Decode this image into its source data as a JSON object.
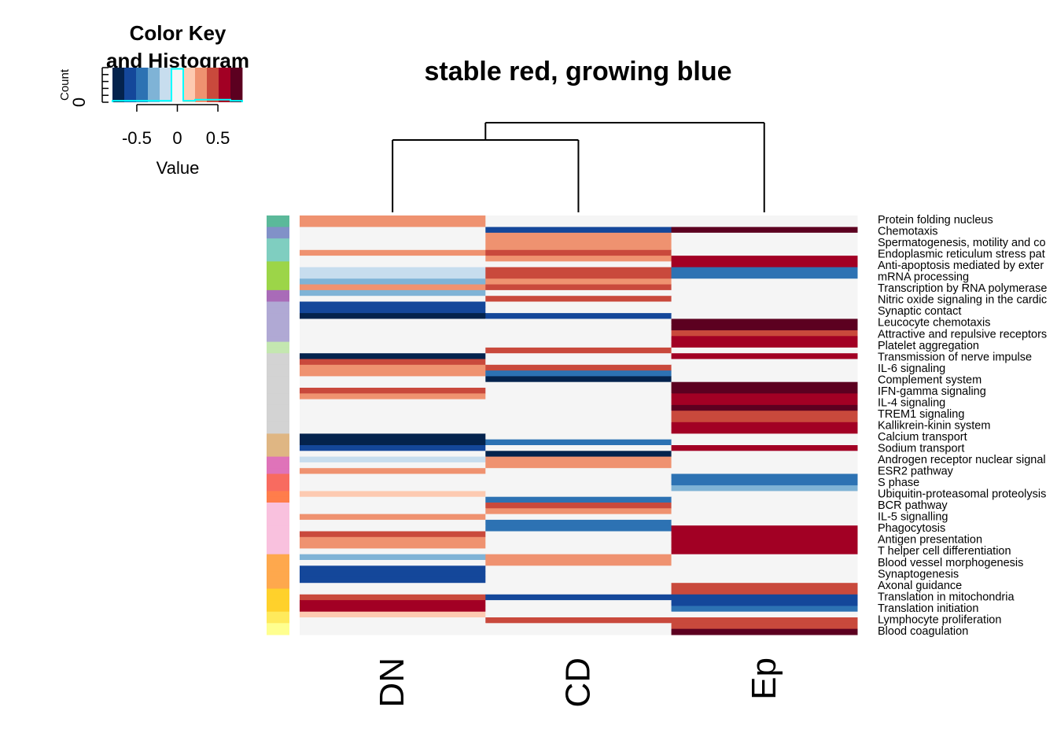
{
  "chart_data": {
    "type": "heatmap",
    "title": "stable red, growing blue",
    "columns": [
      "DN",
      "CD",
      "Ep"
    ],
    "row_labels": [
      "Protein folding nucleus",
      "Chemotaxis",
      "Spermatogenesis, motility and co",
      "Endoplasmic reticulum stress pat",
      "Anti-apoptosis mediated by exter",
      "mRNA processing",
      "Transcription by RNA polymerase",
      "Nitric oxide signaling in the cardic",
      "Synaptic contact",
      "Leucocyte chemotaxis",
      "Attractive and repulsive receptors",
      "Platelet aggregation",
      "Transmission of nerve impulse",
      "IL-6 signaling",
      "Complement system",
      "IFN-gamma signaling",
      "IL-4 signaling",
      "TREM1 signaling",
      "Kallikrein-kinin system",
      "Calcium transport",
      "Sodium transport",
      "Androgen receptor nuclear signal",
      "ESR2 pathway",
      "S phase",
      "Ubiquitin-proteasomal proteolysis",
      "BCR pathway",
      "IL-5 signalling",
      "Phagocytosis",
      "Antigen presentation",
      "T helper cell differentiation",
      "Blood vessel morphogenesis",
      "Synaptogenesis",
      "Axonal guidance",
      "Translation in mitochondria",
      "Translation initiation",
      "Lymphocyte proliferation",
      "Blood coagulation"
    ],
    "n_rows": 73,
    "values": [
      [
        0.35,
        0,
        0
      ],
      [
        0.35,
        0,
        0
      ],
      [
        0,
        -0.6,
        0.7
      ],
      [
        0,
        0.35,
        0
      ],
      [
        0,
        0.35,
        0
      ],
      [
        0,
        0.35,
        0
      ],
      [
        0.35,
        0.45,
        0
      ],
      [
        0,
        0.35,
        0.6
      ],
      [
        0,
        0,
        0.6
      ],
      [
        -0.2,
        0.45,
        -0.5
      ],
      [
        -0.2,
        0.45,
        -0.5
      ],
      [
        -0.3,
        0.35,
        0
      ],
      [
        0.35,
        0.45,
        0
      ],
      [
        -0.3,
        0,
        0
      ],
      [
        0,
        0.45,
        0
      ],
      [
        -0.6,
        0,
        0
      ],
      [
        -0.6,
        0,
        0
      ],
      [
        -0.8,
        -0.6,
        0
      ],
      [
        0,
        0,
        0.7
      ],
      [
        0,
        0,
        0.7
      ],
      [
        0,
        0,
        0.45
      ],
      [
        0,
        0,
        0.6
      ],
      [
        0,
        0,
        0.6
      ],
      [
        0,
        0.45,
        0
      ],
      [
        -0.8,
        0,
        0.6
      ],
      [
        0.45,
        0,
        0
      ],
      [
        0.35,
        0.45,
        0
      ],
      [
        0.35,
        -0.5,
        0
      ],
      [
        0,
        -0.8,
        0
      ],
      [
        0,
        0,
        0.7
      ],
      [
        0.45,
        0,
        0.7
      ],
      [
        0.35,
        0,
        0.6
      ],
      [
        0,
        0,
        0.6
      ],
      [
        0,
        0,
        0.7
      ],
      [
        0,
        0,
        0.45
      ],
      [
        0,
        0,
        0.45
      ],
      [
        0,
        0,
        0.6
      ],
      [
        0,
        0,
        0.6
      ],
      [
        -0.8,
        0,
        0
      ],
      [
        -0.8,
        -0.5,
        0
      ],
      [
        -0.6,
        0,
        0.6
      ],
      [
        0,
        -0.8,
        0
      ],
      [
        -0.2,
        0.35,
        0
      ],
      [
        0,
        0.35,
        0
      ],
      [
        0.35,
        0,
        0
      ],
      [
        0,
        0,
        -0.5
      ],
      [
        0,
        0,
        -0.5
      ],
      [
        0,
        0,
        -0.3
      ],
      [
        0.15,
        0,
        0
      ],
      [
        0,
        -0.5,
        0
      ],
      [
        0,
        0.45,
        0
      ],
      [
        0,
        0.35,
        0
      ],
      [
        0.35,
        0,
        0
      ],
      [
        0,
        -0.5,
        0
      ],
      [
        0,
        -0.5,
        0.6
      ],
      [
        0.45,
        0,
        0.6
      ],
      [
        0.35,
        0,
        0.6
      ],
      [
        0.35,
        0,
        0.6
      ],
      [
        0,
        0,
        0.6
      ],
      [
        -0.3,
        0.35,
        0
      ],
      [
        0,
        0.35,
        0
      ],
      [
        -0.6,
        0,
        0
      ],
      [
        -0.6,
        0,
        0
      ],
      [
        -0.6,
        0,
        0
      ],
      [
        0,
        0,
        0.45
      ],
      [
        0,
        0,
        0.45
      ],
      [
        0.45,
        -0.6,
        -0.6
      ],
      [
        0.6,
        0,
        -0.6
      ],
      [
        0.6,
        0,
        -0.5
      ],
      [
        0.15,
        0,
        0
      ],
      [
        0,
        0.45,
        0.45
      ],
      [
        0,
        0,
        0.45
      ],
      [
        0,
        0,
        0.7
      ]
    ],
    "row_side_colors": [
      "#5bb99a",
      "#5bb99a",
      "#8191c8",
      "#8191c8",
      "#7fcec0",
      "#7fcec0",
      "#7fcec0",
      "#7fcec0",
      "#9cd548",
      "#9cd548",
      "#9cd548",
      "#9cd548",
      "#9cd548",
      "#a96bb8",
      "#a96bb8",
      "#b0a9d4",
      "#b0a9d4",
      "#b0a9d4",
      "#b0a9d4",
      "#b0a9d4",
      "#b0a9d4",
      "#b0a9d4",
      "#c4e7b0",
      "#c4e7b0",
      "#d3d3d3",
      "#d3d3d3",
      "#d3d3d3",
      "#d3d3d3",
      "#d3d3d3",
      "#d3d3d3",
      "#d3d3d3",
      "#d3d3d3",
      "#d3d3d3",
      "#d3d3d3",
      "#d3d3d3",
      "#d3d3d3",
      "#d3d3d3",
      "#d3d3d3",
      "#dfb683",
      "#dfb683",
      "#dfb683",
      "#dfb683",
      "#df73b9",
      "#df73b9",
      "#df73b9",
      "#f86b60",
      "#f86b60",
      "#f86b60",
      "#ff7d4b",
      "#ff7d4b",
      "#f9c1de",
      "#f9c1de",
      "#f9c1de",
      "#f9c1de",
      "#f9c1de",
      "#f9c1de",
      "#f9c1de",
      "#f9c1de",
      "#f9c1de",
      "#fea84d",
      "#fea84d",
      "#fea84d",
      "#fea84d",
      "#fea84d",
      "#fea84d",
      "#ffd12b",
      "#ffd12b",
      "#ffd12b",
      "#ffd12b",
      "#ffea5c",
      "#ffea5c",
      "#ffff8f",
      "#ffff8f"
    ],
    "column_dendrogram": {
      "merges": [
        {
          "left": "DN",
          "right": "CD"
        },
        {
          "left": "DN+CD",
          "right": "Ep"
        }
      ]
    },
    "color_key": {
      "title_line1": "Color Key",
      "title_line2": "and Histogram",
      "xlabel": "Value",
      "ylabel": "Count",
      "y_tick_label": "0",
      "x_ticks": [
        -0.5,
        0,
        0.5
      ],
      "x_tick_labels": [
        "-0.5",
        "0",
        "0.5"
      ],
      "range": [
        -0.8,
        0.8
      ],
      "colors": [
        "#04234d",
        "#14479a",
        "#2d72b3",
        "#7fb3d6",
        "#c7ddee",
        "#f5f5f5",
        "#fdcab1",
        "#ef9270",
        "#c9493c",
        "#a20024",
        "#5c0020"
      ],
      "histogram_counts": [
        1,
        1,
        1,
        1,
        1,
        30,
        1,
        2,
        2,
        2,
        1
      ],
      "histogram_color": "#00ffff"
    }
  }
}
